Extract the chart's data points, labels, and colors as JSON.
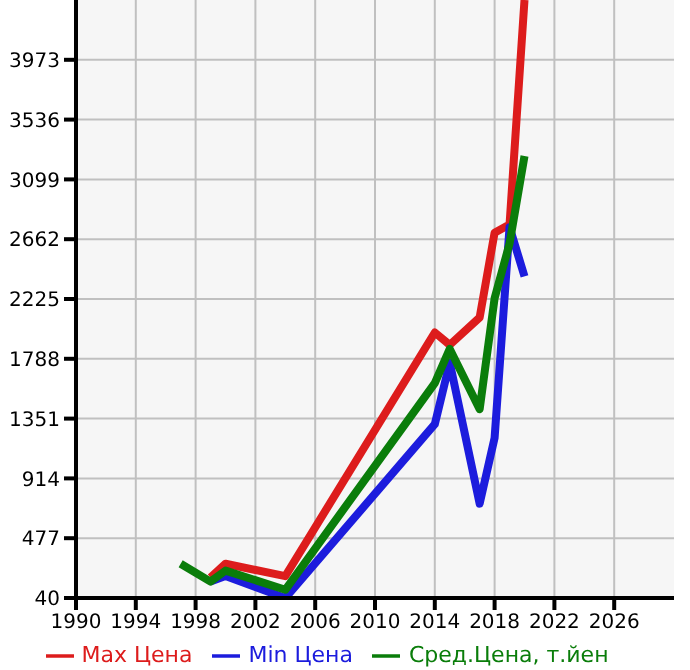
{
  "chart_data": {
    "type": "line",
    "x": [
      1997,
      1999,
      2000,
      2004,
      2014,
      2015,
      2017,
      2018,
      2019,
      2020
    ],
    "series": [
      {
        "name": "Max Цена",
        "color": "#dd1c1c",
        "values": [
          null,
          190,
          290,
          200,
          1980,
          1890,
          2090,
          2710,
          2770,
          4410
        ]
      },
      {
        "name": "Min Цена",
        "color": "#1c1cdd",
        "values": [
          null,
          160,
          200,
          40,
          1310,
          1760,
          730,
          1210,
          2750,
          2390
        ]
      },
      {
        "name": "Сред.Цена, т.йен",
        "color": "#0a7d0a",
        "values": [
          290,
          160,
          240,
          100,
          1610,
          1860,
          1420,
          2230,
          2630,
          3270
        ]
      }
    ],
    "xlim": [
      1990,
      2030
    ],
    "xticks": [
      1990,
      1994,
      1998,
      2002,
      2006,
      2010,
      2014,
      2018,
      2022,
      2026
    ],
    "ylim": [
      40,
      4410
    ],
    "yticks": [
      40,
      477,
      914,
      1351,
      1788,
      2225,
      2662,
      3099,
      3536,
      3973
    ],
    "grid": true,
    "legend": "bottom",
    "marker": "none",
    "line_style": "solid"
  }
}
